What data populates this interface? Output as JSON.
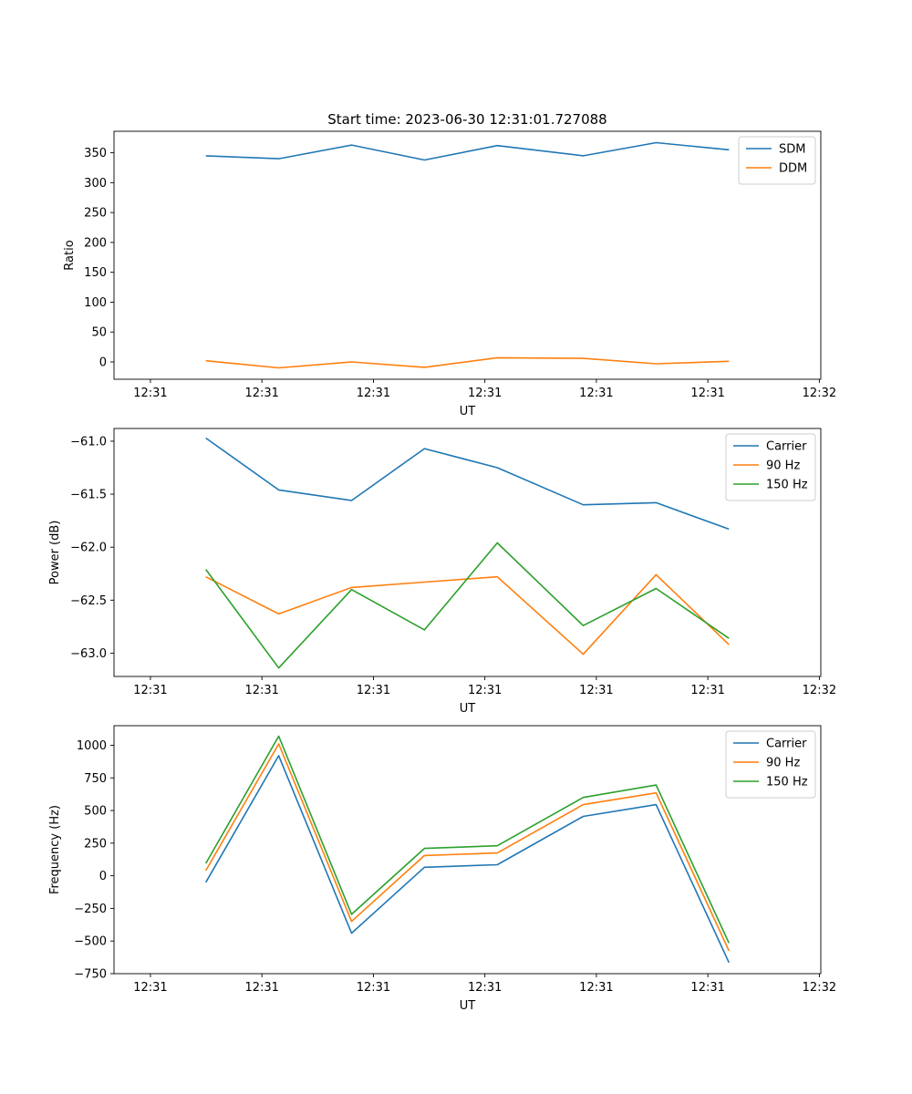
{
  "figure": {
    "title": "Start time: 2023-06-30 12:31:01.727088"
  },
  "chart_data": [
    {
      "type": "line",
      "title": "Start time: 2023-06-30 12:31:01.727088",
      "xlabel": "UT",
      "ylabel": "Ratio",
      "x_tick_labels": [
        "12:31",
        "12:31",
        "12:31",
        "12:31",
        "12:31",
        "12:31",
        "12:32"
      ],
      "y_ticks": [
        0,
        50,
        100,
        150,
        200,
        250,
        300,
        350
      ],
      "ylim": [
        -29,
        386
      ],
      "legend": "top-right",
      "grid": false,
      "series": [
        {
          "name": "SDM",
          "color": "#1f77b4",
          "values": [
            345,
            340,
            363,
            338,
            362,
            345,
            367,
            355
          ]
        },
        {
          "name": "DDM",
          "color": "#ff7f0e",
          "values": [
            2,
            -10,
            0,
            -9,
            7,
            6,
            -3,
            1
          ]
        }
      ]
    },
    {
      "type": "line",
      "title": "",
      "xlabel": "UT",
      "ylabel": "Power (dB)",
      "x_tick_labels": [
        "12:31",
        "12:31",
        "12:31",
        "12:31",
        "12:31",
        "12:31",
        "12:32"
      ],
      "y_ticks": [
        -61.0,
        -61.5,
        -62.0,
        -62.5,
        -63.0
      ],
      "y_tick_labels": [
        "−61.0",
        "−61.5",
        "−62.0",
        "−62.5",
        "−63.0"
      ],
      "ylim": [
        -63.22,
        -60.88
      ],
      "legend": "top-right",
      "grid": false,
      "series": [
        {
          "name": "Carrier",
          "color": "#1f77b4",
          "values": [
            -60.97,
            -61.46,
            -61.56,
            -61.07,
            -61.25,
            -61.6,
            -61.58,
            -61.83
          ]
        },
        {
          "name": "90 Hz",
          "color": "#ff7f0e",
          "values": [
            -62.28,
            -62.63,
            -62.38,
            -62.33,
            -62.28,
            -63.01,
            -62.26,
            -62.92
          ]
        },
        {
          "name": "150 Hz",
          "color": "#2ca02c",
          "values": [
            -62.21,
            -63.14,
            -62.4,
            -62.78,
            -61.96,
            -62.74,
            -62.39,
            -62.86
          ]
        }
      ]
    },
    {
      "type": "line",
      "title": "",
      "xlabel": "UT",
      "ylabel": "Frequency (Hz)",
      "x_tick_labels": [
        "12:31",
        "12:31",
        "12:31",
        "12:31",
        "12:31",
        "12:31",
        "12:32"
      ],
      "y_ticks": [
        -750,
        -500,
        -250,
        0,
        250,
        500,
        750,
        1000
      ],
      "y_tick_labels": [
        "−750",
        "−500",
        "−250",
        "0",
        "250",
        "500",
        "750",
        "1000"
      ],
      "ylim": [
        -750,
        1150
      ],
      "legend": "top-right",
      "grid": false,
      "series": [
        {
          "name": "Carrier",
          "color": "#1f77b4",
          "values": [
            -50,
            920,
            -440,
            65,
            85,
            455,
            545,
            -665
          ]
        },
        {
          "name": "90 Hz",
          "color": "#ff7f0e",
          "values": [
            40,
            1010,
            -350,
            155,
            175,
            545,
            635,
            -575
          ]
        },
        {
          "name": "150 Hz",
          "color": "#2ca02c",
          "values": [
            95,
            1070,
            -295,
            210,
            230,
            600,
            695,
            -515
          ]
        }
      ]
    }
  ]
}
